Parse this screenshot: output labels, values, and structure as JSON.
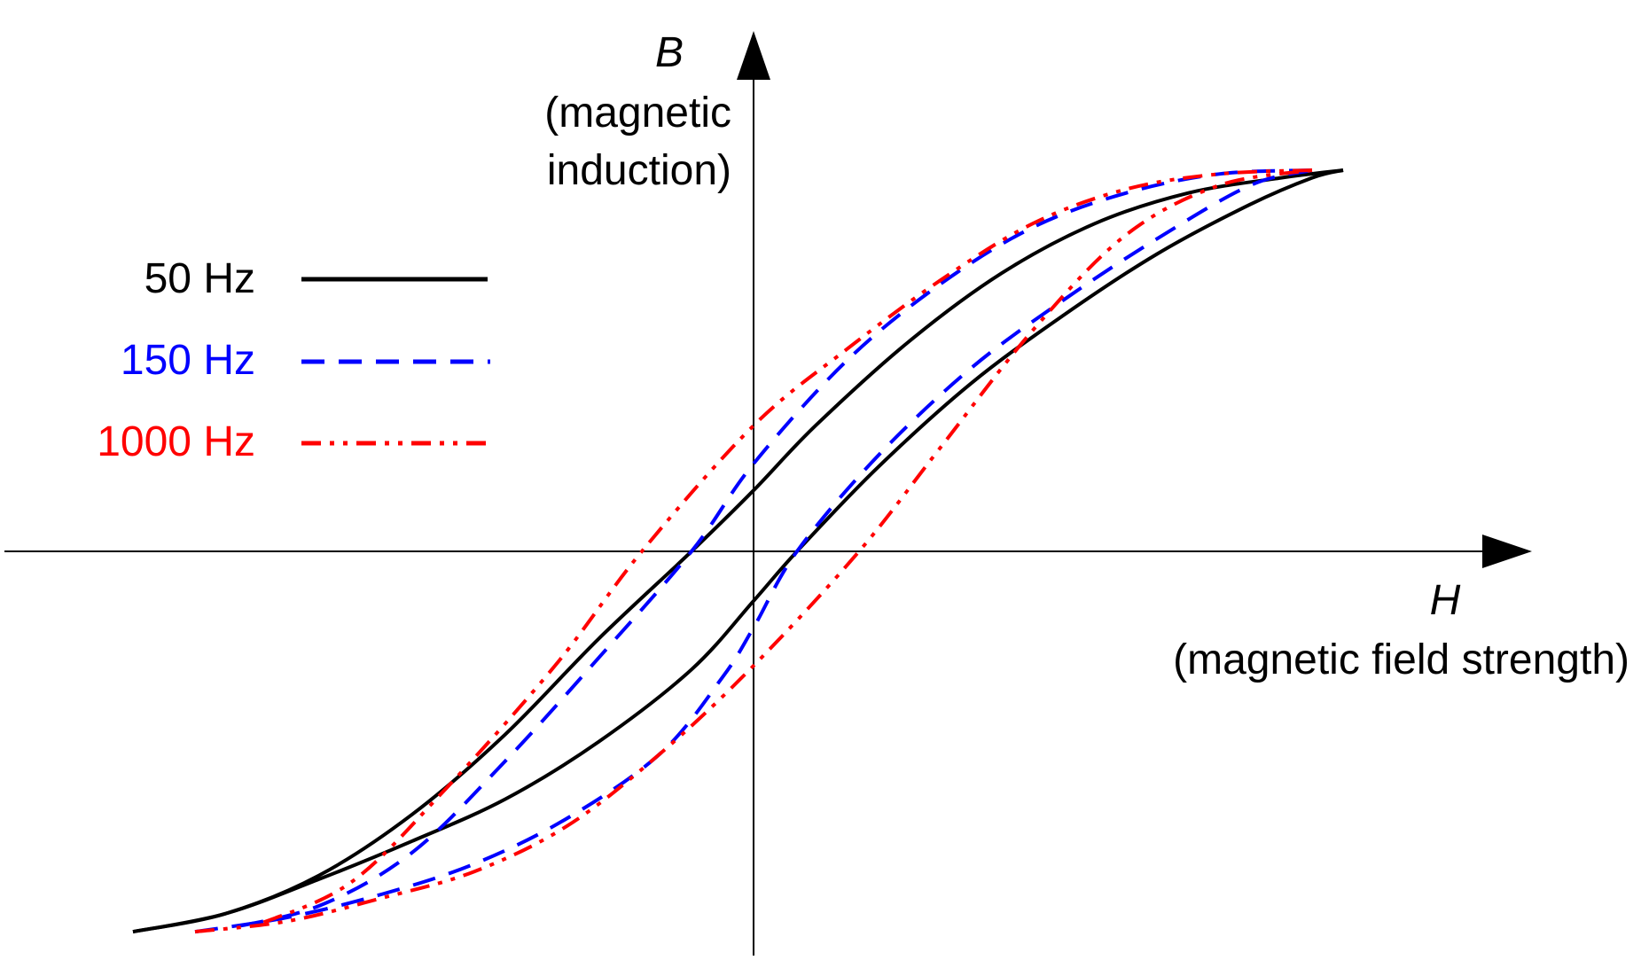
{
  "chart_data": {
    "type": "line",
    "title": "",
    "x_axis": {
      "symbol": "H",
      "label": "(magnetic field strength)"
    },
    "y_axis": {
      "symbol": "B",
      "label_line1": "(magnetic",
      "label_line2": "induction)"
    },
    "xlim": [
      -1.0,
      1.0
    ],
    "ylim": [
      -1.0,
      1.0
    ],
    "grid": false,
    "legend_position": "upper-left",
    "series": [
      {
        "name": "50 Hz",
        "color": "#000000",
        "style": "solid",
        "ascending": {
          "x": [
            -1.0,
            -0.85,
            -0.7,
            -0.55,
            -0.4,
            -0.25,
            -0.1,
            0.0,
            0.07,
            0.2,
            0.35,
            0.5,
            0.65,
            0.8,
            0.9,
            0.95
          ],
          "y": [
            -0.998,
            -0.95,
            -0.86,
            -0.76,
            -0.65,
            -0.5,
            -0.31,
            -0.13,
            0.0,
            0.22,
            0.44,
            0.62,
            0.78,
            0.91,
            0.98,
            1.0
          ]
        },
        "descending": {
          "x": [
            0.95,
            0.85,
            0.7,
            0.55,
            0.4,
            0.25,
            0.1,
            0.0,
            -0.1,
            -0.25,
            -0.4,
            -0.55,
            -0.7,
            -0.85,
            -1.0
          ],
          "y": [
            1.0,
            0.98,
            0.94,
            0.86,
            0.73,
            0.55,
            0.33,
            0.16,
            0.0,
            -0.23,
            -0.48,
            -0.69,
            -0.85,
            -0.95,
            -0.998
          ]
        }
      },
      {
        "name": "150 Hz",
        "color": "#0000ff",
        "style": "dashed",
        "ascending": {
          "x": [
            -0.9,
            -0.75,
            -0.6,
            -0.45,
            -0.3,
            -0.15,
            -0.05,
            0.0,
            0.07,
            0.2,
            0.35,
            0.5,
            0.65,
            0.8,
            0.9
          ],
          "y": [
            -0.998,
            -0.96,
            -0.9,
            -0.82,
            -0.7,
            -0.53,
            -0.33,
            -0.2,
            0.0,
            0.25,
            0.48,
            0.66,
            0.82,
            0.96,
            1.0
          ]
        },
        "descending": {
          "x": [
            0.9,
            0.75,
            0.6,
            0.45,
            0.3,
            0.15,
            0.0,
            -0.1,
            -0.25,
            -0.4,
            -0.55,
            -0.7,
            -0.85
          ],
          "y": [
            1.0,
            0.99,
            0.94,
            0.85,
            0.7,
            0.5,
            0.23,
            0.0,
            -0.28,
            -0.55,
            -0.79,
            -0.93,
            -0.99
          ]
        }
      },
      {
        "name": "1000 Hz",
        "color": "#ff0000",
        "style": "dash-dot-dot",
        "ascending": {
          "x": [
            -0.9,
            -0.75,
            -0.6,
            -0.45,
            -0.3,
            -0.15,
            0.0,
            0.17,
            0.3,
            0.45,
            0.6,
            0.75,
            0.9
          ],
          "y": [
            -0.998,
            -0.97,
            -0.91,
            -0.84,
            -0.72,
            -0.53,
            -0.3,
            0.0,
            0.27,
            0.58,
            0.83,
            0.96,
            1.0
          ]
        },
        "descending": {
          "x": [
            0.9,
            0.75,
            0.6,
            0.45,
            0.3,
            0.15,
            0.0,
            -0.18,
            -0.32,
            -0.5,
            -0.65,
            -0.8
          ],
          "y": [
            1.0,
            0.99,
            0.95,
            0.86,
            0.71,
            0.53,
            0.33,
            0.0,
            -0.3,
            -0.63,
            -0.87,
            -0.98
          ]
        }
      }
    ]
  }
}
